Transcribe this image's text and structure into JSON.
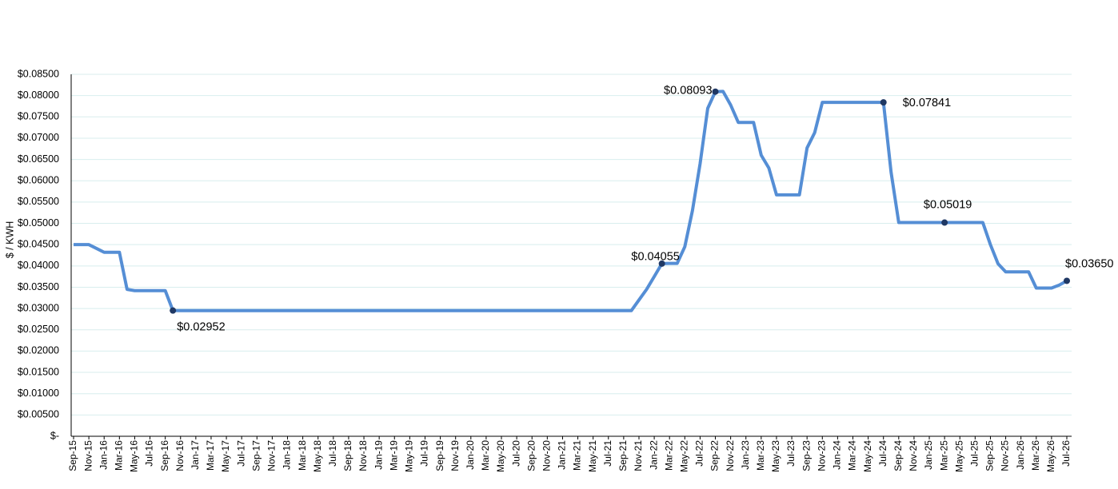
{
  "chart_data": {
    "type": "line",
    "y_label": "$ / KWH",
    "categories": [
      "Sep-15",
      null,
      "Nov-15",
      null,
      "Jan-16",
      null,
      "Mar-16",
      null,
      "May-16",
      null,
      "Jul-16",
      null,
      "Sep-16",
      null,
      "Nov-16",
      null,
      "Jan-17",
      null,
      "Mar-17",
      null,
      "May-17",
      null,
      "Jul-17",
      null,
      "Sep-17",
      null,
      "Nov-17",
      null,
      "Jan-18",
      null,
      "Mar-18",
      null,
      "May-18",
      null,
      "Jul-18",
      null,
      "Sep-18",
      null,
      "Nov-18",
      null,
      "Jan-19",
      null,
      "Mar-19",
      null,
      "May-19",
      null,
      "Jul-19",
      null,
      "Sep-19",
      null,
      "Nov-19",
      null,
      "Jan-20",
      null,
      "Mar-20",
      null,
      "May-20",
      null,
      "Jul-20",
      null,
      "Sep-20",
      null,
      "Nov-20",
      null,
      "Jan-21",
      null,
      "Mar-21",
      null,
      "May-21",
      null,
      "Jul-21",
      null,
      "Sep-21",
      null,
      "Nov-21",
      null,
      "Jan-22",
      null,
      "Mar-22",
      null,
      "May-22",
      null,
      "Jul-22",
      null,
      "Sep-22",
      null,
      "Nov-22",
      null,
      "Jan-23",
      null,
      "Mar-23",
      null,
      "May-23",
      null,
      "Jul-23",
      null,
      "Sep-23",
      null,
      "Nov-23",
      null,
      "Jan-24",
      null,
      "Mar-24",
      null,
      "May-24",
      null,
      "Jul-24",
      null,
      "Sep-24",
      null,
      "Nov-24",
      null,
      "Jan-25",
      null,
      "Mar-25",
      null,
      "May-25",
      null,
      "Jul-25",
      null,
      "Sep-25",
      null,
      "Nov-25",
      null,
      "Jan-26",
      null,
      "Mar-26",
      null,
      "May-26",
      null,
      "Jul-26"
    ],
    "series": [
      {
        "color": "#558ed5",
        "values": [
          0.045,
          0.045,
          0.045,
          0.0441,
          0.0432,
          0.0432,
          0.0432,
          0.0345,
          0.0342,
          0.0342,
          0.0342,
          0.0342,
          0.0342,
          0.02952,
          0.0295,
          0.0295,
          0.0295,
          0.0295,
          0.0295,
          0.0295,
          0.0295,
          0.0295,
          0.0295,
          0.0295,
          0.0295,
          0.0295,
          0.0295,
          0.0295,
          0.0295,
          0.0295,
          0.0295,
          0.0295,
          0.0295,
          0.0295,
          0.0295,
          0.0295,
          0.0295,
          0.0295,
          0.0295,
          0.0295,
          0.0295,
          0.0295,
          0.0295,
          0.0295,
          0.0295,
          0.0295,
          0.0295,
          0.0295,
          0.0295,
          0.0295,
          0.0295,
          0.0295,
          0.0295,
          0.0295,
          0.0295,
          0.0295,
          0.0295,
          0.0295,
          0.0295,
          0.0295,
          0.0295,
          0.0295,
          0.0295,
          0.0295,
          0.0295,
          0.0295,
          0.0295,
          0.0295,
          0.0295,
          0.0295,
          0.0295,
          0.0295,
          0.0295,
          0.0295,
          0.032,
          0.0345,
          0.0375,
          0.04055,
          0.0406,
          0.0406,
          0.0445,
          0.053,
          0.064,
          0.077,
          0.08093,
          0.081,
          0.0778,
          0.0737,
          0.0737,
          0.0737,
          0.066,
          0.063,
          0.0567,
          0.0567,
          0.0567,
          0.0567,
          0.0677,
          0.0713,
          0.0784,
          0.0784,
          0.0784,
          0.0784,
          0.0784,
          0.0784,
          0.0784,
          0.0784,
          0.07841,
          0.062,
          0.0502,
          0.0502,
          0.0502,
          0.0502,
          0.0502,
          0.0502,
          0.05019,
          0.0502,
          0.0502,
          0.0502,
          0.0502,
          0.0502,
          0.045,
          0.0405,
          0.0386,
          0.0386,
          0.0386,
          0.0386,
          0.0348,
          0.0348,
          0.0348,
          0.0355,
          0.0365
        ],
        "value_labels": [
          null,
          null,
          null,
          null,
          null,
          null,
          null,
          null,
          null,
          null,
          null,
          null,
          null,
          "$0.02952",
          null,
          null,
          null,
          null,
          null,
          null,
          null,
          null,
          null,
          null,
          null,
          null,
          null,
          null,
          null,
          null,
          null,
          null,
          null,
          null,
          null,
          null,
          null,
          null,
          null,
          null,
          null,
          null,
          null,
          null,
          null,
          null,
          null,
          null,
          null,
          null,
          null,
          null,
          null,
          null,
          null,
          null,
          null,
          null,
          null,
          null,
          null,
          null,
          null,
          null,
          null,
          null,
          null,
          null,
          null,
          null,
          null,
          null,
          null,
          null,
          null,
          null,
          null,
          "$0.04055",
          null,
          null,
          null,
          null,
          null,
          null,
          "$0.08093",
          null,
          null,
          null,
          null,
          null,
          null,
          null,
          null,
          null,
          null,
          null,
          null,
          null,
          null,
          null,
          null,
          null,
          null,
          null,
          null,
          null,
          "$0.07841",
          null,
          null,
          null,
          null,
          null,
          null,
          null,
          "$0.05019",
          null,
          null,
          null,
          null,
          null,
          null,
          null,
          null,
          null,
          null,
          null,
          null,
          null,
          null,
          null,
          "$0.03650"
        ]
      }
    ],
    "ylim": [
      0,
      0.085
    ],
    "yticks": [
      {
        "value": 0,
        "label": "$-"
      },
      {
        "value": 0.005,
        "label": "$0.00500"
      },
      {
        "value": 0.01,
        "label": "$0.01000"
      },
      {
        "value": 0.015,
        "label": "$0.01500"
      },
      {
        "value": 0.02,
        "label": "$0.02000"
      },
      {
        "value": 0.025,
        "label": "$0.02500"
      },
      {
        "value": 0.03,
        "label": "$0.03000"
      },
      {
        "value": 0.035,
        "label": "$0.03500"
      },
      {
        "value": 0.04,
        "label": "$0.04000"
      },
      {
        "value": 0.045,
        "label": "$0.04500"
      },
      {
        "value": 0.05,
        "label": "$0.05000"
      },
      {
        "value": 0.055,
        "label": "$0.05500"
      },
      {
        "value": 0.06,
        "label": "$0.06000"
      },
      {
        "value": 0.065,
        "label": "$0.06500"
      },
      {
        "value": 0.07,
        "label": "$0.07000"
      },
      {
        "value": 0.075,
        "label": "$0.07500"
      },
      {
        "value": 0.08,
        "label": "$0.08000"
      },
      {
        "value": 0.085,
        "label": "$0.08500"
      }
    ],
    "grid": true
  }
}
